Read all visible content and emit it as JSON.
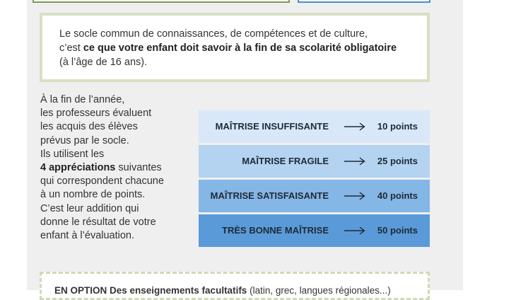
{
  "intro": {
    "line1": "Le  socle commun de connaissances, de compétences et de culture,",
    "line2_prefix": "c’est ",
    "line2_bold": "ce que votre enfant doit savoir à la fin de sa scolarité obligatoire",
    "line3": "(à l’âge de 16 ans)."
  },
  "side": {
    "lines_before": [
      "À la fin de l’année,",
      "les professeurs évaluent",
      "les acquis des élèves",
      "prévus par le socle.",
      "Ils utilisent les"
    ],
    "bold": "4 appréciations",
    "after_bold": " suivantes",
    "lines_after": [
      "qui correspondent chacune",
      "à un nombre de points.",
      "C’est leur addition qui",
      "donne le résultat de votre",
      "enfant à l’évaluation."
    ]
  },
  "levels": [
    {
      "name": "MAÎTRISE INSUFFISANTE",
      "points": "10 points"
    },
    {
      "name": "MAÎTRISE FRAGILE",
      "points": "25 points"
    },
    {
      "name": "MAÎTRISE SATISFAISANTE",
      "points": "40 points"
    },
    {
      "name": "TRÈS BONNE MAÎTRISE",
      "points": "50 points"
    }
  ],
  "option": {
    "bold": "EN OPTION Des enseignements facultatifs",
    "rest": " (latin, grec, langues régionales...)"
  }
}
